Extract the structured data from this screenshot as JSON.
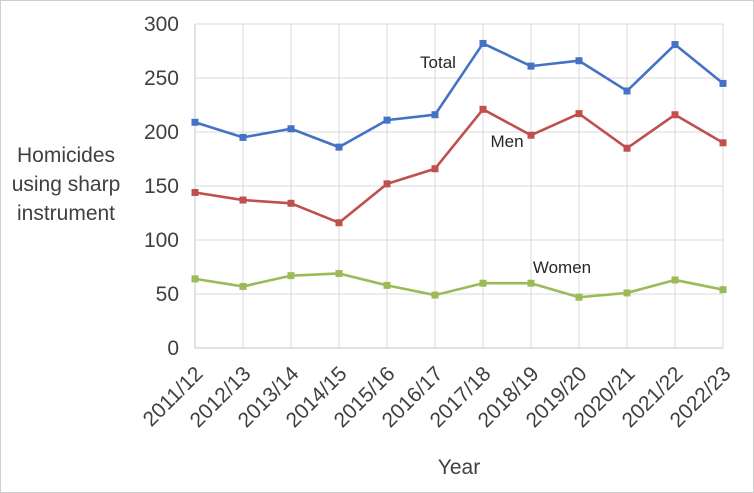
{
  "chart_data": {
    "type": "line",
    "title": "",
    "xlabel": "Year",
    "ylabel": "Homicides using sharp instrument",
    "ylabel_lines": [
      "Homicides",
      "using sharp",
      "instrument"
    ],
    "categories": [
      "2011/12",
      "2012/13",
      "2013/14",
      "2014/15",
      "2015/16",
      "2016/17",
      "2017/18",
      "2018/19",
      "2019/20",
      "2020/21",
      "2021/22",
      "2022/23"
    ],
    "series": [
      {
        "name": "Total",
        "color": "#4472c4",
        "values": [
          209,
          195,
          203,
          186,
          211,
          216,
          282,
          261,
          266,
          238,
          281,
          245
        ]
      },
      {
        "name": "Men",
        "color": "#c0504d",
        "values": [
          144,
          137,
          134,
          116,
          152,
          166,
          221,
          197,
          217,
          185,
          216,
          190
        ]
      },
      {
        "name": "Women",
        "color": "#9bbb59",
        "values": [
          64,
          57,
          67,
          69,
          58,
          49,
          60,
          60,
          47,
          51,
          63,
          54
        ]
      }
    ],
    "yticks": [
      0,
      50,
      100,
      150,
      200,
      250,
      300
    ],
    "ylim": [
      0,
      300
    ],
    "grid": true,
    "legend": "inline-labels",
    "marker": "square"
  },
  "colors": {
    "gridline": "#d9d9d9",
    "axis_line": "#c6c6c6",
    "tick_text": "#404040",
    "series_label_text": "#262626",
    "background": "#ffffff",
    "frame_border": "#cfcfcf"
  }
}
